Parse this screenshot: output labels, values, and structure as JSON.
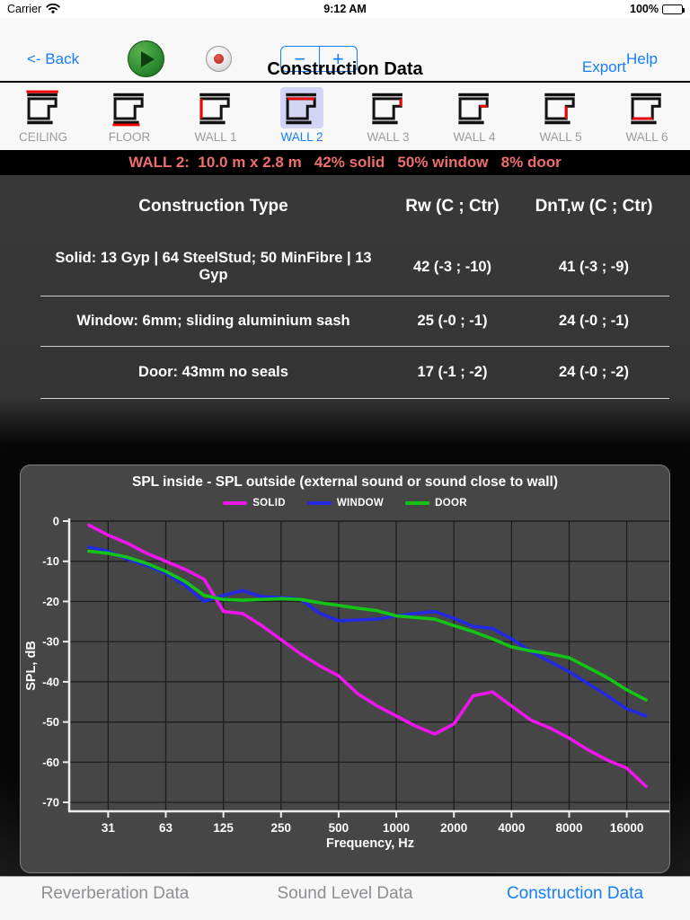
{
  "status_bar": {
    "carrier": "Carrier",
    "time": "9:12 AM",
    "battery_percent": "100%"
  },
  "toolbar": {
    "back_label": "<- Back",
    "help_label": "Help",
    "title": "Construction Data",
    "export_label": "Export",
    "stepper_minus": "−",
    "stepper_plus": "+"
  },
  "wall_tabs": [
    {
      "label": "CEILING",
      "highlight": "ceiling",
      "selected": false
    },
    {
      "label": "FLOOR",
      "highlight": "floor",
      "selected": false
    },
    {
      "label": "WALL 1",
      "highlight": "left",
      "selected": false
    },
    {
      "label": "WALL 2",
      "highlight": "top",
      "selected": true
    },
    {
      "label": "WALL 3",
      "highlight": "right-upper",
      "selected": false
    },
    {
      "label": "WALL 4",
      "highlight": "notch",
      "selected": false
    },
    {
      "label": "WALL 5",
      "highlight": "right-lower",
      "selected": false
    },
    {
      "label": "WALL 6",
      "highlight": "bottom",
      "selected": false
    }
  ],
  "banner": {
    "text": "WALL 2:  10.0 m x 2.8 m   42% solid   50% window   8% door",
    "color": "#ef6d6d"
  },
  "construction_table": {
    "headers": [
      "Construction Type",
      "Rw (C ; Ctr)",
      "DnT,w (C ; Ctr)"
    ],
    "rows": [
      {
        "type": "Solid: 13 Gyp | 64 SteelStud; 50 MinFibre | 13 Gyp",
        "rw": "42 (-3 ; -10)",
        "dntw": "41 (-3 ; -9)"
      },
      {
        "type": "Window: 6mm; sliding aluminium sash",
        "rw": "25 (-0 ; -1)",
        "dntw": "24 (-0 ; -1)"
      },
      {
        "type": "Door: 43mm no seals",
        "rw": "17 (-1 ; -2)",
        "dntw": "24 (-0 ; -2)"
      }
    ]
  },
  "chart_data": {
    "type": "line",
    "title": "SPL inside - SPL outside (external sound or sound close to wall)",
    "xlabel": "Frequency, Hz",
    "ylabel": "SPL, dB",
    "ylim": [
      0,
      -72
    ],
    "grid": true,
    "legend_position": "top",
    "frequencies": [
      25,
      31.5,
      40,
      50,
      63,
      80,
      100,
      125,
      160,
      200,
      250,
      315,
      400,
      500,
      630,
      800,
      1000,
      1250,
      1600,
      2000,
      2500,
      3150,
      4000,
      5000,
      6300,
      8000,
      10000,
      12500,
      16000,
      20000
    ],
    "x_tick_labels": [
      "31",
      "63",
      "125",
      "250",
      "500",
      "1000",
      "2000",
      "4000",
      "8000",
      "16000"
    ],
    "x_tick_indices": [
      1,
      4,
      7,
      10,
      13,
      16,
      19,
      22,
      25,
      28
    ],
    "y_ticks": [
      0,
      -10,
      -20,
      -30,
      -40,
      -50,
      -60,
      -70
    ],
    "series": [
      {
        "name": "SOLID",
        "color": "#ee15ee",
        "values": [
          -1,
          -3.5,
          -5.5,
          -8,
          -10,
          -12,
          -14.5,
          -22.5,
          -23,
          -26,
          -29.5,
          -33,
          -36,
          -38.5,
          -43,
          -46,
          -48.5,
          -51,
          -53,
          -50.5,
          -43.5,
          -42.5,
          -46,
          -49.5,
          -51.5,
          -54,
          -57,
          -59.5,
          -61.5,
          -66
        ]
      },
      {
        "name": "WINDOW",
        "color": "#2328e2",
        "values": [
          -6.5,
          -7.5,
          -9.5,
          -11,
          -13,
          -16,
          -20,
          -18.5,
          -17.3,
          -18.8,
          -19,
          -19.4,
          -22.9,
          -24.8,
          -24.6,
          -24.4,
          -23.6,
          -23,
          -22.5,
          -24.2,
          -26.2,
          -26.7,
          -29.3,
          -32.4,
          -35,
          -37.5,
          -40.5,
          -43.5,
          -46.7,
          -48.5
        ]
      },
      {
        "name": "DOOR",
        "color": "#14c414",
        "values": [
          -7.5,
          -8,
          -9,
          -10.5,
          -12.5,
          -15,
          -18.5,
          -19.5,
          -19.7,
          -19.5,
          -19.3,
          -19.5,
          -20.3,
          -21,
          -21.7,
          -22.3,
          -23.6,
          -24,
          -24.4,
          -26,
          -27.5,
          -29.3,
          -31.3,
          -32.3,
          -33,
          -34,
          -36.5,
          -39,
          -42,
          -44.5
        ]
      }
    ]
  },
  "bottom_tabs": [
    {
      "label": "Reverberation Data",
      "active": false
    },
    {
      "label": "Sound Level Data",
      "active": false
    },
    {
      "label": "Construction Data",
      "active": true
    }
  ]
}
